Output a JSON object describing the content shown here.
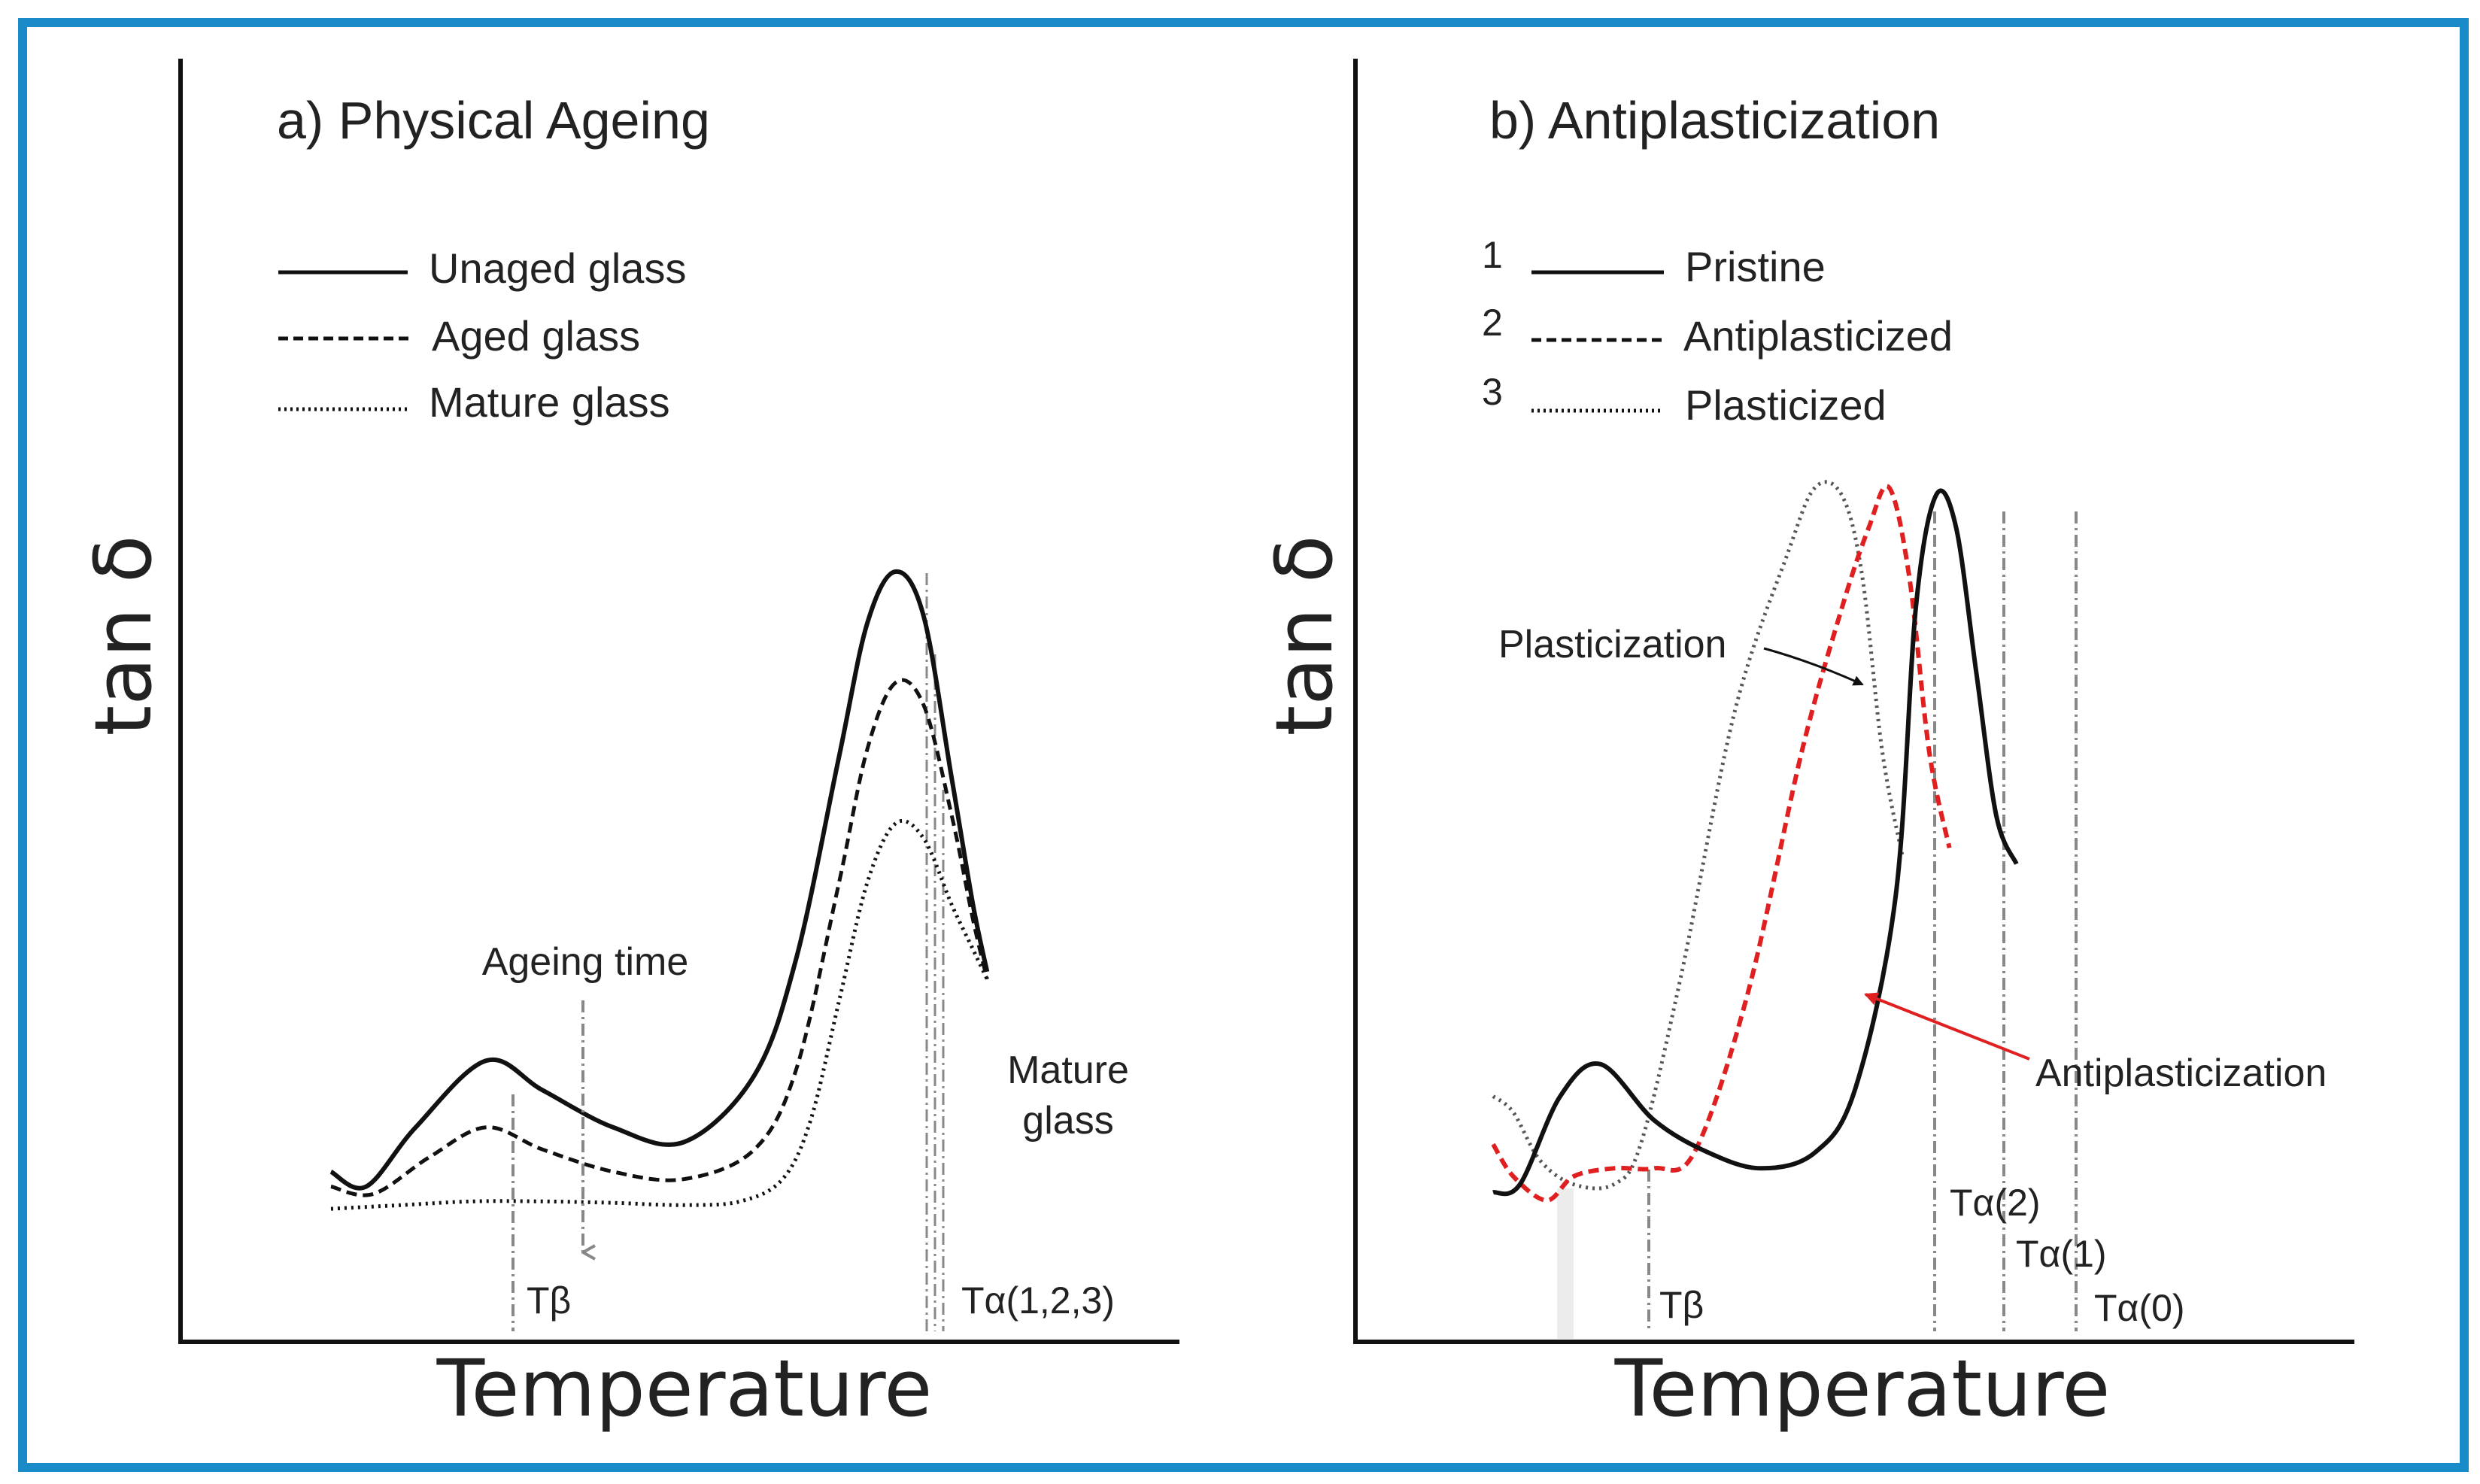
{
  "colors": {
    "frame": "#1a8ac8",
    "red": "#e02020",
    "black": "#111111",
    "guide": "#888888"
  },
  "chart_data": [
    {
      "type": "line",
      "title": "a) Physical Ageing",
      "xlabel": "Temperature",
      "ylabel": "tan δ",
      "legend_position": "top-left",
      "series": [
        {
          "name": "Unaged glass",
          "style": "solid",
          "x": [
            0.0,
            0.05,
            0.12,
            0.22,
            0.3,
            0.4,
            0.5,
            0.6,
            0.66,
            0.72,
            0.76,
            0.8,
            0.84,
            0.88,
            0.91,
            0.93
          ],
          "y": [
            0.19,
            0.17,
            0.25,
            0.34,
            0.3,
            0.25,
            0.23,
            0.32,
            0.48,
            0.75,
            0.93,
            1.0,
            0.94,
            0.72,
            0.55,
            0.46
          ]
        },
        {
          "name": "Aged glass",
          "style": "dashed",
          "x": [
            0.0,
            0.06,
            0.14,
            0.22,
            0.3,
            0.4,
            0.5,
            0.6,
            0.66,
            0.72,
            0.76,
            0.8,
            0.84,
            0.88,
            0.91,
            0.93
          ],
          "y": [
            0.17,
            0.16,
            0.21,
            0.25,
            0.22,
            0.19,
            0.18,
            0.22,
            0.33,
            0.58,
            0.76,
            0.85,
            0.82,
            0.67,
            0.53,
            0.45
          ]
        },
        {
          "name": "Mature glass",
          "style": "dotted",
          "x": [
            0.0,
            0.1,
            0.2,
            0.3,
            0.4,
            0.5,
            0.58,
            0.64,
            0.68,
            0.72,
            0.76,
            0.8,
            0.84,
            0.88,
            0.91,
            0.93
          ],
          "y": [
            0.14,
            0.145,
            0.15,
            0.15,
            0.148,
            0.145,
            0.15,
            0.18,
            0.26,
            0.42,
            0.58,
            0.66,
            0.64,
            0.55,
            0.49,
            0.45
          ]
        }
      ],
      "guides": [
        {
          "label": "Tβ",
          "x": 0.22
        },
        {
          "label": "Tα(1,2,3)",
          "x": 0.8
        }
      ],
      "annotations": [
        {
          "text": "Ageing time"
        },
        {
          "text": "Mature"
        },
        {
          "text": "glass"
        }
      ]
    },
    {
      "type": "line",
      "title": "b) Antiplasticization",
      "xlabel": "Temperature",
      "ylabel": "tan δ",
      "legend_position": "top-left",
      "series": [
        {
          "number": "1",
          "name": "Pristine",
          "style": "solid",
          "color": "#111111",
          "x": [
            0.0,
            0.04,
            0.1,
            0.16,
            0.24,
            0.32,
            0.4,
            0.48,
            0.54,
            0.6,
            0.63,
            0.66,
            0.69,
            0.72,
            0.75,
            0.78
          ],
          "y": [
            0.15,
            0.16,
            0.27,
            0.31,
            0.24,
            0.2,
            0.18,
            0.2,
            0.28,
            0.52,
            0.88,
            1.02,
            0.98,
            0.8,
            0.62,
            0.56
          ]
        },
        {
          "number": "2",
          "name": "Antiplasticized",
          "style": "dashed",
          "color": "#e02020",
          "x": [
            0.0,
            0.03,
            0.08,
            0.12,
            0.18,
            0.24,
            0.3,
            0.38,
            0.46,
            0.52,
            0.56,
            0.59,
            0.62,
            0.65,
            0.68
          ],
          "y": [
            0.21,
            0.17,
            0.14,
            0.17,
            0.18,
            0.18,
            0.2,
            0.4,
            0.7,
            0.88,
            0.98,
            1.03,
            0.92,
            0.7,
            0.58
          ]
        },
        {
          "number": "3",
          "name": "Plasticized",
          "style": "dotted",
          "color": "#555555",
          "x": [
            0.0,
            0.03,
            0.07,
            0.12,
            0.18,
            0.22,
            0.28,
            0.36,
            0.44,
            0.48,
            0.52,
            0.55,
            0.58,
            0.61
          ],
          "y": [
            0.27,
            0.25,
            0.19,
            0.16,
            0.16,
            0.21,
            0.42,
            0.75,
            0.95,
            1.03,
            1.02,
            0.92,
            0.7,
            0.57
          ]
        }
      ],
      "guides": [
        {
          "label": "Tβ",
          "x": 0.16
        },
        {
          "label": "Tα(2)",
          "x": 0.52
        },
        {
          "label": "Tα(1)",
          "x": 0.59
        },
        {
          "label": "Tα(0)",
          "x": 0.66
        }
      ],
      "annotations": [
        {
          "text": "Plasticization"
        },
        {
          "text": "Antiplasticization"
        }
      ]
    }
  ]
}
